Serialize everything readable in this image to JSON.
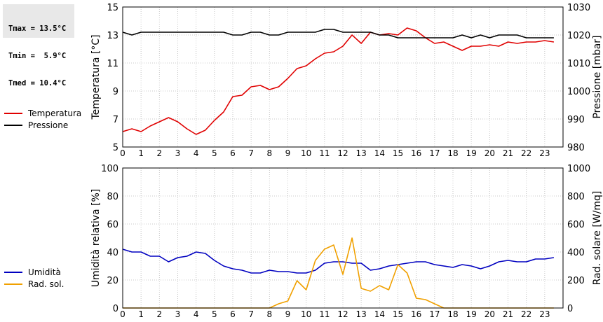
{
  "stats": {
    "tmax": "Tmax = 13.5°C",
    "tmin": "Tmin =  5.9°C",
    "tmed": "Tmed = 10.4°C"
  },
  "legend_top": [
    {
      "label": "Temperatura",
      "color": "#e00000"
    },
    {
      "label": "Pressione",
      "color": "#000000"
    }
  ],
  "legend_bottom": [
    {
      "label": "Umidità",
      "color": "#0000c0"
    },
    {
      "label": "Rad. sol.",
      "color": "#f0a000"
    }
  ],
  "chart_data": [
    {
      "type": "line",
      "xlim": [
        0,
        24
      ],
      "xticks": [
        "0",
        "1",
        "2",
        "3",
        "4",
        "5",
        "6",
        "7",
        "8",
        "9",
        "10",
        "11",
        "12",
        "13",
        "14",
        "15",
        "16",
        "17",
        "18",
        "19",
        "20",
        "21",
        "22",
        "23"
      ],
      "grid": true,
      "y_left": {
        "label": "Temperatura [°C]",
        "lim": [
          5,
          15
        ],
        "ticks": [
          "5",
          "7",
          "9",
          "11",
          "13",
          "15"
        ]
      },
      "y_right": {
        "label": "Pressione [mbar]",
        "lim": [
          980,
          1030
        ],
        "ticks": [
          "980",
          "990",
          "1000",
          "1010",
          "1020",
          "1030"
        ]
      },
      "series": [
        {
          "name": "Temperatura",
          "axis": "left",
          "color": "#e00000",
          "x": [
            0,
            0.5,
            1,
            1.5,
            2,
            2.5,
            3,
            3.5,
            4,
            4.5,
            5,
            5.5,
            6,
            6.5,
            7,
            7.5,
            8,
            8.5,
            9,
            9.5,
            10,
            10.5,
            11,
            11.5,
            12,
            12.5,
            13,
            13.5,
            14,
            14.5,
            15,
            15.5,
            16,
            16.5,
            17,
            17.5,
            18,
            18.5,
            19,
            19.5,
            20,
            20.5,
            21,
            21.5,
            22,
            22.5,
            23,
            23.5
          ],
          "y": [
            6.1,
            6.3,
            6.1,
            6.5,
            6.8,
            7.1,
            6.8,
            6.3,
            5.9,
            6.2,
            6.9,
            7.5,
            8.6,
            8.7,
            9.3,
            9.4,
            9.1,
            9.3,
            9.9,
            10.6,
            10.8,
            11.3,
            11.7,
            11.8,
            12.2,
            13.0,
            12.4,
            13.2,
            13.0,
            13.1,
            13.0,
            13.5,
            13.3,
            12.8,
            12.4,
            12.5,
            12.2,
            11.9,
            12.2,
            12.2,
            12.3,
            12.2,
            12.5,
            12.4,
            12.5,
            12.5,
            12.6,
            12.5
          ]
        },
        {
          "name": "Pressione",
          "axis": "right",
          "color": "#000000",
          "x": [
            0,
            0.5,
            1,
            1.5,
            2,
            2.5,
            3,
            3.5,
            4,
            4.5,
            5,
            5.5,
            6,
            6.5,
            7,
            7.5,
            8,
            8.5,
            9,
            9.5,
            10,
            10.5,
            11,
            11.5,
            12,
            12.5,
            13,
            13.5,
            14,
            14.5,
            15,
            15.5,
            16,
            16.5,
            17,
            17.5,
            18,
            18.5,
            19,
            19.5,
            20,
            20.5,
            21,
            21.5,
            22,
            22.5,
            23,
            23.5
          ],
          "y": [
            1021,
            1020,
            1021,
            1021,
            1021,
            1021,
            1021,
            1021,
            1021,
            1021,
            1021,
            1021,
            1020,
            1020,
            1021,
            1021,
            1020,
            1020,
            1021,
            1021,
            1021,
            1021,
            1022,
            1022,
            1021,
            1021,
            1021,
            1021,
            1020,
            1020,
            1019,
            1019,
            1019,
            1019,
            1019,
            1019,
            1019,
            1020,
            1019,
            1020,
            1019,
            1020,
            1020,
            1020,
            1019,
            1019,
            1019,
            1019
          ]
        }
      ]
    },
    {
      "type": "line",
      "xlim": [
        0,
        24
      ],
      "xticks": [
        "0",
        "1",
        "2",
        "3",
        "4",
        "5",
        "6",
        "7",
        "8",
        "9",
        "10",
        "11",
        "12",
        "13",
        "14",
        "15",
        "16",
        "17",
        "18",
        "19",
        "20",
        "21",
        "22",
        "23"
      ],
      "grid": true,
      "y_left": {
        "label": "Umidità relativa [%]",
        "lim": [
          0,
          100
        ],
        "ticks": [
          "0",
          "20",
          "40",
          "60",
          "80",
          "100"
        ]
      },
      "y_right": {
        "label": "Rad. solare [W/mq]",
        "lim": [
          0,
          1000
        ],
        "ticks": [
          "0",
          "200",
          "400",
          "600",
          "800",
          "1000"
        ]
      },
      "series": [
        {
          "name": "Umidità",
          "axis": "left",
          "color": "#0000c0",
          "x": [
            0,
            0.5,
            1,
            1.5,
            2,
            2.5,
            3,
            3.5,
            4,
            4.5,
            5,
            5.5,
            6,
            6.5,
            7,
            7.5,
            8,
            8.5,
            9,
            9.5,
            10,
            10.5,
            11,
            11.5,
            12,
            12.5,
            13,
            13.5,
            14,
            14.5,
            15,
            15.5,
            16,
            16.5,
            17,
            17.5,
            18,
            18.5,
            19,
            19.5,
            20,
            20.5,
            21,
            21.5,
            22,
            22.5,
            23,
            23.5
          ],
          "y": [
            42,
            40,
            40,
            37,
            37,
            33,
            36,
            37,
            40,
            39,
            34,
            30,
            28,
            27,
            25,
            25,
            27,
            26,
            26,
            25,
            25,
            27,
            32,
            33,
            33,
            32,
            32,
            27,
            28,
            30,
            31,
            32,
            33,
            33,
            31,
            30,
            29,
            31,
            30,
            28,
            30,
            33,
            34,
            33,
            33,
            35,
            35,
            36
          ]
        },
        {
          "name": "Rad. sol.",
          "axis": "right",
          "color": "#f0a000",
          "x": [
            0,
            1,
            2,
            3,
            4,
            5,
            6,
            7,
            8,
            8.5,
            9,
            9.5,
            10,
            10.5,
            11,
            11.5,
            12,
            12.5,
            13,
            13.5,
            14,
            14.5,
            15,
            15.5,
            16,
            16.5,
            17,
            17.5,
            18,
            19,
            20,
            21,
            22,
            23,
            23.5
          ],
          "y": [
            0,
            0,
            0,
            0,
            0,
            0,
            0,
            0,
            0,
            30,
            50,
            195,
            130,
            340,
            420,
            450,
            240,
            500,
            140,
            120,
            160,
            130,
            310,
            250,
            70,
            60,
            30,
            0,
            0,
            0,
            0,
            0,
            0,
            0,
            0
          ]
        }
      ]
    }
  ]
}
